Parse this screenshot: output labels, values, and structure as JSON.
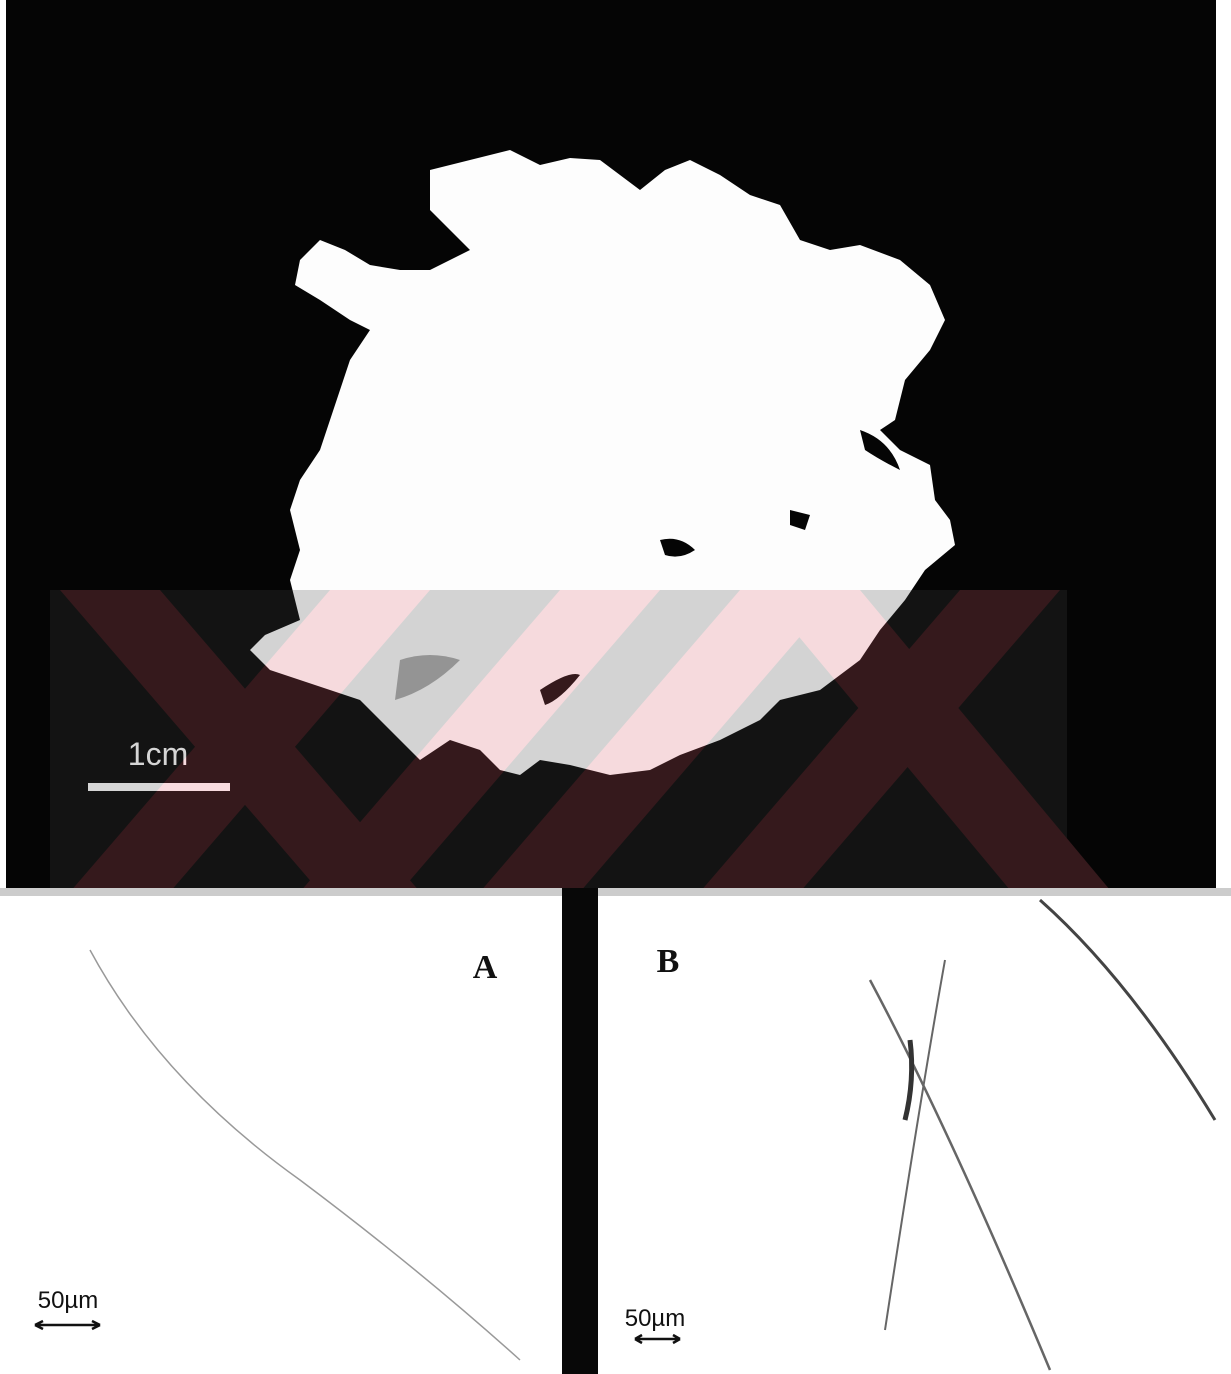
{
  "panels": [
    {
      "scale_bar": "1cm"
    },
    {
      "label": "A",
      "scale_bar": "50µm"
    },
    {
      "label": "B",
      "scale_bar": "50µm"
    }
  ]
}
